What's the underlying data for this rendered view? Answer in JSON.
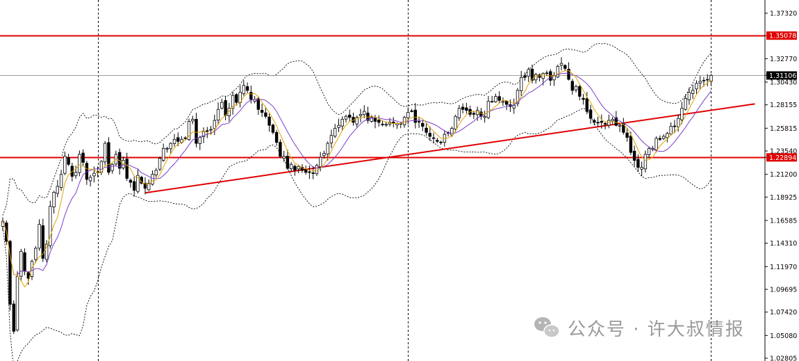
{
  "chart_data": {
    "type": "candlestick",
    "title": "",
    "xlabel": "",
    "ylabel": "",
    "ylim": [
      1.02805,
      1.383
    ],
    "price_ticks": [
      1.3732,
      1.35078,
      1.3277,
      1.31106,
      1.3043,
      1.28155,
      1.25815,
      1.2354,
      1.22894,
      1.212,
      1.18925,
      1.16585,
      1.1431,
      1.1197,
      1.09695,
      1.0742,
      1.0508,
      1.02805
    ],
    "price_tick_labels": [
      "1.37320",
      "1.35078",
      "1.32770",
      "1.31106",
      "1.30430",
      "1.28155",
      "1.25815",
      "1.23540",
      "1.22894",
      "1.21200",
      "1.18925",
      "1.16585",
      "1.14310",
      "1.11970",
      "1.09695",
      "1.07420",
      "1.05080",
      "1.02805"
    ],
    "grid": false,
    "horizontal_lines": [
      {
        "value": 1.35078,
        "label": "1.35078",
        "color": "#e00000"
      },
      {
        "value": 1.22894,
        "label": "1.22894",
        "color": "#e00000"
      }
    ],
    "current_price": {
      "value": 1.31106,
      "label": "1.31106",
      "color": "#000000"
    },
    "period_separators": [
      26,
      111,
      194
    ],
    "trendline": {
      "from": [
        39,
        1.1935
      ],
      "to": [
        206,
        1.2825
      ],
      "color": "#e00000"
    },
    "close": [
      1.165,
      1.145,
      1.082,
      1.055,
      1.11,
      1.135,
      1.115,
      1.108,
      1.125,
      1.138,
      1.162,
      1.128,
      1.142,
      1.18,
      1.194,
      1.2,
      1.212,
      1.23,
      1.222,
      1.21,
      1.214,
      1.232,
      1.224,
      1.207,
      1.209,
      1.213,
      1.214,
      1.225,
      1.243,
      1.214,
      1.222,
      1.232,
      1.218,
      1.226,
      1.208,
      1.204,
      1.196,
      1.211,
      1.203,
      1.198,
      1.203,
      1.212,
      1.216,
      1.228,
      1.238,
      1.238,
      1.243,
      1.247,
      1.245,
      1.247,
      1.248,
      1.265,
      1.267,
      1.243,
      1.249,
      1.255,
      1.255,
      1.257,
      1.266,
      1.277,
      1.284,
      1.271,
      1.278,
      1.291,
      1.284,
      1.294,
      1.301,
      1.296,
      1.287,
      1.287,
      1.277,
      1.274,
      1.27,
      1.261,
      1.254,
      1.244,
      1.23,
      1.23,
      1.218,
      1.222,
      1.216,
      1.22,
      1.216,
      1.214,
      1.214,
      1.213,
      1.221,
      1.229,
      1.233,
      1.243,
      1.251,
      1.258,
      1.261,
      1.267,
      1.27,
      1.269,
      1.264,
      1.269,
      1.272,
      1.275,
      1.266,
      1.269,
      1.265,
      1.264,
      1.262,
      1.262,
      1.264,
      1.263,
      1.263,
      1.263,
      1.269,
      1.274,
      1.275,
      1.264,
      1.265,
      1.26,
      1.254,
      1.25,
      1.248,
      1.245,
      1.244,
      1.252,
      1.253,
      1.258,
      1.27,
      1.278,
      1.277,
      1.276,
      1.272,
      1.272,
      1.276,
      1.27,
      1.27,
      1.285,
      1.285,
      1.29,
      1.286,
      1.285,
      1.282,
      1.28,
      1.281,
      1.296,
      1.309,
      1.309,
      1.317,
      1.306,
      1.312,
      1.309,
      1.313,
      1.313,
      1.306,
      1.311,
      1.32,
      1.323,
      1.318,
      1.307,
      1.296,
      1.3,
      1.29,
      1.287,
      1.275,
      1.268,
      1.264,
      1.264,
      1.264,
      1.262,
      1.266,
      1.267,
      1.261,
      1.261,
      1.254,
      1.249,
      1.234,
      1.226,
      1.219,
      1.219,
      1.232,
      1.238,
      1.238,
      1.248,
      1.247,
      1.25,
      1.253,
      1.26,
      1.26,
      1.268,
      1.278,
      1.288,
      1.294,
      1.296,
      1.303,
      1.305,
      1.306,
      1.307,
      1.311
    ],
    "series": [
      {
        "name": "",
        "type": "candles",
        "color": "#000000"
      },
      {
        "name": "",
        "type": "moving-average",
        "color": "#e0a100"
      },
      {
        "name": "",
        "type": "moving-average",
        "color": "#7b3cc8"
      },
      {
        "name": "",
        "type": "bollinger-bands",
        "color": "#000000",
        "style": "dotted"
      }
    ]
  },
  "watermark": {
    "logo_icon": "wechat-icon",
    "text": "公众号 · 许大叔情报",
    "color": "#9a9a9a"
  },
  "colors": {
    "background": "#ffffff",
    "candle": "#000000",
    "level_line": "#e00000",
    "current_line": "#a0a0a0",
    "axis_line": "#000000"
  }
}
